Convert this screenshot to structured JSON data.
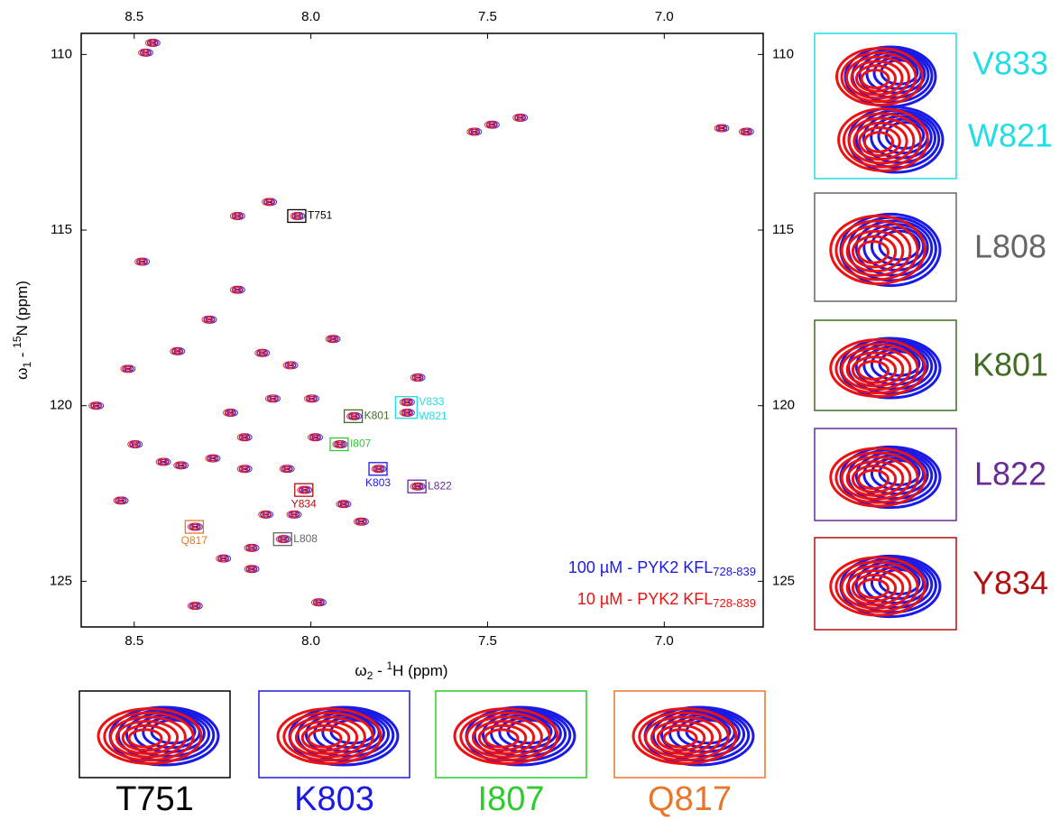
{
  "chart_data": {
    "type": "scatter",
    "xlabel": [
      "ω",
      "2",
      " - ",
      "1",
      "H  (ppm)"
    ],
    "ylabel": [
      "ω",
      "1",
      " - ",
      "15",
      "N  (ppm)"
    ],
    "xlim": [
      8.65,
      6.72
    ],
    "ylim": [
      109.4,
      126.3
    ],
    "xticks": [
      8.5,
      {
        "value": 8,
        "label": "8.0"
      },
      7.5,
      {
        "value": 7,
        "label": "7.0"
      }
    ],
    "yticks": [
      110,
      115,
      120,
      125
    ],
    "series": [
      {
        "name": "100 µM - PYK2 KFL",
        "subscript": "728-839",
        "color": "#1a1ae6",
        "x": [
          8.445,
          8.465,
          7.535,
          7.485,
          7.405,
          6.835,
          6.765,
          8.115,
          8.205,
          8.035,
          8.475,
          8.205,
          8.285,
          8.375,
          8.515,
          8.135,
          8.055,
          7.935,
          7.695,
          8.605,
          8.225,
          8.105,
          7.995,
          7.875,
          7.725,
          7.725,
          7.915,
          8.495,
          8.415,
          8.275,
          8.185,
          8.065,
          7.805,
          7.695,
          8.015,
          8.535,
          7.905,
          8.125,
          8.045,
          7.855,
          8.325,
          8.075,
          8.165,
          8.165,
          8.245,
          8.325,
          7.975,
          7.985,
          8.185,
          8.365
        ],
        "y": [
          109.67,
          109.95,
          112.2,
          112.0,
          111.8,
          112.1,
          112.2,
          114.2,
          114.6,
          114.6,
          115.9,
          116.7,
          117.55,
          118.45,
          118.95,
          118.5,
          118.85,
          118.1,
          119.2,
          120.0,
          120.2,
          119.8,
          119.8,
          120.3,
          119.9,
          120.2,
          121.1,
          121.1,
          121.6,
          121.5,
          121.8,
          121.8,
          121.8,
          122.3,
          122.4,
          122.7,
          122.8,
          123.1,
          123.1,
          123.3,
          123.45,
          123.8,
          124.05,
          124.65,
          124.35,
          125.7,
          125.6,
          120.9,
          120.9,
          121.7
        ]
      },
      {
        "name": "10 µM - PYK2 KFL",
        "subscript": "728-839",
        "color": "#ee1111",
        "x": [
          8.45,
          8.47,
          7.54,
          7.49,
          7.41,
          6.84,
          6.77,
          8.12,
          8.21,
          8.04,
          8.48,
          8.21,
          8.29,
          8.38,
          8.52,
          8.14,
          8.06,
          7.94,
          7.7,
          8.61,
          8.23,
          8.11,
          8.0,
          7.88,
          7.73,
          7.73,
          7.92,
          8.5,
          8.42,
          8.28,
          8.19,
          8.07,
          7.81,
          7.7,
          8.02,
          8.54,
          7.91,
          8.13,
          8.05,
          7.86,
          8.33,
          8.08,
          8.17,
          8.17,
          8.25,
          8.33,
          7.98,
          7.99,
          8.19,
          8.37
        ],
        "y": [
          109.67,
          109.95,
          112.2,
          112.0,
          111.8,
          112.1,
          112.2,
          114.2,
          114.6,
          114.6,
          115.9,
          116.7,
          117.55,
          118.45,
          118.95,
          118.5,
          118.85,
          118.1,
          119.2,
          120.0,
          120.2,
          119.8,
          119.8,
          120.3,
          119.9,
          120.2,
          121.1,
          121.1,
          121.6,
          121.5,
          121.8,
          121.8,
          121.8,
          122.3,
          122.4,
          122.7,
          122.8,
          123.1,
          123.1,
          123.3,
          123.45,
          123.8,
          124.05,
          124.65,
          124.35,
          125.7,
          125.6,
          120.9,
          120.9,
          121.7
        ]
      }
    ],
    "annotations": [
      {
        "texts": [
          "T751"
        ],
        "x": 8.04,
        "y": 114.6,
        "color": "#000000",
        "position": "right"
      },
      {
        "texts": [
          "V833",
          "W821"
        ],
        "x": 7.73,
        "y": 120.05,
        "color": "#22dde6",
        "position": "right"
      },
      {
        "texts": [
          "K801"
        ],
        "x": 7.88,
        "y": 120.3,
        "color": "#3f6e22",
        "position": "right"
      },
      {
        "texts": [
          "I807"
        ],
        "x": 7.92,
        "y": 121.1,
        "color": "#2ccc2c",
        "position": "right"
      },
      {
        "texts": [
          "K803"
        ],
        "x": 7.81,
        "y": 121.8,
        "color": "#1a1ae6",
        "position": "below"
      },
      {
        "texts": [
          "L822"
        ],
        "x": 7.7,
        "y": 122.3,
        "color": "#6a2a96",
        "position": "right"
      },
      {
        "texts": [
          "Y834"
        ],
        "x": 8.02,
        "y": 122.4,
        "color": "#b01010",
        "position": "below"
      },
      {
        "texts": [
          "Q817"
        ],
        "x": 8.33,
        "y": 123.45,
        "color": "#e8772a",
        "position": "below"
      },
      {
        "texts": [
          "L808"
        ],
        "x": 8.08,
        "y": 123.8,
        "color": "#666666",
        "position": "right"
      }
    ],
    "insets_right": [
      {
        "labels": [
          "V833",
          "W821"
        ],
        "color": "#22dde6"
      },
      {
        "labels": [
          "L808"
        ],
        "color": "#666666"
      },
      {
        "labels": [
          "K801"
        ],
        "color": "#3f6e22"
      },
      {
        "labels": [
          "L822"
        ],
        "color": "#6a2a96"
      },
      {
        "labels": [
          "Y834"
        ],
        "color": "#b01010"
      }
    ],
    "insets_bottom": [
      {
        "labels": [
          "T751"
        ],
        "color": "#000000"
      },
      {
        "labels": [
          "K803"
        ],
        "color": "#1a1ae6"
      },
      {
        "labels": [
          "I807"
        ],
        "color": "#2ccc2c"
      },
      {
        "labels": [
          "Q817"
        ],
        "color": "#e8772a"
      }
    ]
  }
}
